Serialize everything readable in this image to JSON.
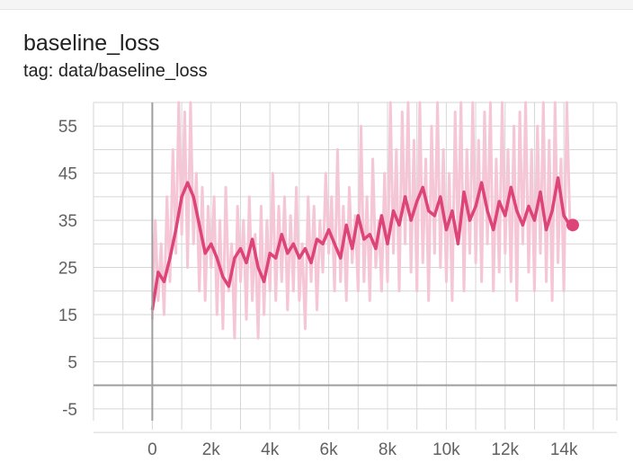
{
  "card": {
    "title": "baseline_loss",
    "subtitle": "tag: data/baseline_loss"
  },
  "colors": {
    "smoothed": "#dd4477",
    "raw": "#f5c6d6",
    "grid": "#d6d6d6",
    "axis": "#9e9e9e"
  },
  "chart_data": {
    "type": "line",
    "title": "baseline_loss",
    "xlabel": "",
    "ylabel": "",
    "xlim": [
      -2000,
      15800
    ],
    "ylim": [
      -7.5,
      60
    ],
    "x_ticks": [
      0,
      2000,
      4000,
      6000,
      8000,
      10000,
      12000,
      14000
    ],
    "x_tick_labels": [
      "0",
      "2k",
      "4k",
      "6k",
      "8k",
      "10k",
      "12k",
      "14k"
    ],
    "y_ticks": [
      -5,
      5,
      15,
      25,
      35,
      45,
      55
    ],
    "y_tick_labels": [
      "-5",
      "5",
      "15",
      "25",
      "35",
      "45",
      "55"
    ],
    "grid": true,
    "series": [
      {
        "role": "smoothed",
        "x": [
          0,
          200,
          400,
          600,
          800,
          1000,
          1200,
          1400,
          1600,
          1800,
          2000,
          2200,
          2400,
          2600,
          2800,
          3000,
          3200,
          3400,
          3600,
          3800,
          4000,
          4200,
          4400,
          4600,
          4800,
          5000,
          5200,
          5400,
          5600,
          5800,
          6000,
          6200,
          6400,
          6600,
          6800,
          7000,
          7200,
          7400,
          7600,
          7800,
          8000,
          8200,
          8400,
          8600,
          8800,
          9000,
          9200,
          9400,
          9600,
          9800,
          10000,
          10200,
          10400,
          10600,
          10800,
          11000,
          11200,
          11400,
          11600,
          11800,
          12000,
          12200,
          12400,
          12600,
          12800,
          13000,
          13200,
          13400,
          13600,
          13800,
          14000,
          14200,
          14300
        ],
        "y": [
          16,
          24,
          22,
          27,
          33,
          40,
          43,
          40,
          34,
          28,
          30,
          27,
          23,
          21,
          27,
          29,
          26,
          31,
          25,
          22,
          28,
          27,
          32,
          28,
          30,
          27,
          29,
          26,
          31,
          30,
          33,
          30,
          27,
          34,
          29,
          36,
          31,
          32,
          29,
          36,
          30,
          37,
          34,
          40,
          35,
          39,
          42,
          37,
          36,
          40,
          33,
          37,
          30,
          41,
          35,
          38,
          43,
          37,
          33,
          39,
          36,
          42,
          37,
          34,
          38,
          35,
          41,
          33,
          37,
          44,
          36,
          34,
          34
        ]
      },
      {
        "role": "raw",
        "x": [
          0,
          100,
          200,
          300,
          400,
          500,
          600,
          700,
          800,
          900,
          1000,
          1100,
          1200,
          1300,
          1400,
          1500,
          1600,
          1700,
          1800,
          1900,
          2000,
          2100,
          2200,
          2300,
          2400,
          2500,
          2600,
          2700,
          2800,
          2900,
          3000,
          3100,
          3200,
          3300,
          3400,
          3500,
          3600,
          3700,
          3800,
          3900,
          4000,
          4100,
          4200,
          4300,
          4400,
          4500,
          4600,
          4700,
          4800,
          4900,
          5000,
          5100,
          5200,
          5300,
          5400,
          5500,
          5600,
          5700,
          5800,
          5900,
          6000,
          6100,
          6200,
          6300,
          6400,
          6500,
          6600,
          6700,
          6800,
          6900,
          7000,
          7100,
          7200,
          7300,
          7400,
          7500,
          7600,
          7700,
          7800,
          7900,
          8000,
          8100,
          8200,
          8300,
          8400,
          8500,
          8600,
          8700,
          8800,
          8900,
          9000,
          9100,
          9200,
          9300,
          9400,
          9500,
          9600,
          9700,
          9800,
          9900,
          10000,
          10100,
          10200,
          10300,
          10400,
          10500,
          10600,
          10700,
          10800,
          10900,
          11000,
          11100,
          11200,
          11300,
          11400,
          11500,
          11600,
          11700,
          11800,
          11900,
          12000,
          12100,
          12200,
          12300,
          12400,
          12500,
          12600,
          12700,
          12800,
          12900,
          13000,
          13100,
          13200,
          13300,
          13400,
          13500,
          13600,
          13700,
          13800,
          13900,
          14000,
          14100,
          14200
        ],
        "y": [
          14,
          35,
          18,
          30,
          15,
          40,
          22,
          50,
          28,
          60,
          32,
          58,
          25,
          60,
          30,
          45,
          20,
          42,
          18,
          38,
          25,
          40,
          15,
          35,
          12,
          42,
          20,
          30,
          10,
          38,
          22,
          35,
          14,
          40,
          18,
          32,
          10,
          38,
          15,
          35,
          20,
          45,
          18,
          38,
          22,
          40,
          16,
          36,
          20,
          42,
          18,
          30,
          12,
          40,
          22,
          38,
          16,
          35,
          24,
          45,
          28,
          40,
          20,
          50,
          22,
          38,
          18,
          42,
          26,
          36,
          20,
          55,
          22,
          40,
          18,
          48,
          25,
          35,
          20,
          45,
          22,
          60,
          28,
          50,
          20,
          58,
          30,
          60,
          24,
          52,
          20,
          60,
          26,
          48,
          18,
          55,
          28,
          60,
          25,
          50,
          22,
          45,
          18,
          58,
          30,
          60,
          20,
          50,
          28,
          60,
          26,
          52,
          22,
          58,
          30,
          60,
          20,
          48,
          24,
          60,
          28,
          50,
          22,
          55,
          18,
          58,
          30,
          60,
          24,
          50,
          20,
          55,
          28,
          60,
          22,
          52,
          18,
          60,
          26,
          48,
          20,
          60,
          35
        ]
      }
    ]
  }
}
